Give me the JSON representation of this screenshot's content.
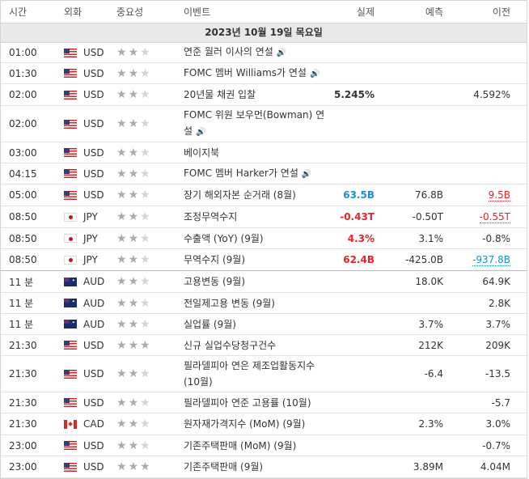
{
  "columns": {
    "time": "시간",
    "currency": "외화",
    "importance": "중요성",
    "event": "이벤트",
    "actual": "실제",
    "forecast": "예측",
    "previous": "이전"
  },
  "date_header": "2023년 10월 19일 목요일",
  "rows": [
    {
      "time": "01:00",
      "cur": "USD",
      "stars": 2,
      "event": "연준 월러 이사의 연설",
      "speech": true,
      "actual": "",
      "forecast": "",
      "previous": "",
      "h": 24
    },
    {
      "time": "01:30",
      "cur": "USD",
      "stars": 2,
      "event": "FOMC 멤버 Williams가 연설",
      "speech": true,
      "actual": "",
      "forecast": "",
      "previous": "",
      "h": 25
    },
    {
      "time": "02:00",
      "cur": "USD",
      "stars": 2,
      "event": "20년물 채권 입찰",
      "speech": false,
      "actual": "5.245%",
      "forecast": "",
      "previous": "4.592%",
      "h": 26
    },
    {
      "time": "02:00",
      "cur": "USD",
      "stars": 2,
      "event": "FOMC 위원 보우먼(Bowman) 연설",
      "speech": true,
      "actual": "",
      "forecast": "",
      "previous": "",
      "h": 44
    },
    {
      "time": "03:00",
      "cur": "USD",
      "stars": 2,
      "event": "베이지북",
      "speech": false,
      "actual": "",
      "forecast": "",
      "previous": "",
      "h": 25
    },
    {
      "time": "04:15",
      "cur": "USD",
      "stars": 2,
      "event": "FOMC 멤버 Harker가 연설",
      "speech": true,
      "actual": "",
      "forecast": "",
      "previous": "",
      "h": 25
    },
    {
      "time": "05:00",
      "cur": "USD",
      "stars": 2,
      "event": "장기 해외자본 순거래 (8월)",
      "speech": false,
      "actual": "63.5B",
      "actual_color": "pos",
      "forecast": "76.8B",
      "previous": "9.5B",
      "previous_style": "ul-red",
      "h": 26
    },
    {
      "time": "08:50",
      "cur": "JPY",
      "stars": 2,
      "event": "조정무역수지",
      "speech": false,
      "actual": "-0.43T",
      "actual_color": "neg",
      "forecast": "-0.50T",
      "previous": "-0.55T",
      "previous_style": "ul-red",
      "h": 26
    },
    {
      "time": "08:50",
      "cur": "JPY",
      "stars": 2,
      "event": "수출액 (YoY) (9월)",
      "speech": false,
      "actual": "4.3%",
      "actual_color": "neg",
      "forecast": "3.1%",
      "previous": "-0.8%",
      "h": 25
    },
    {
      "time": "08:50",
      "cur": "JPY",
      "stars": 2,
      "event": "무역수지 (9월)",
      "speech": false,
      "actual": "62.4B",
      "actual_color": "neg",
      "forecast": "-425.0B",
      "previous": "-937.8B",
      "previous_style": "ul-blue",
      "h": 26,
      "group_end": true
    },
    {
      "time": "11 분",
      "cur": "AUD",
      "stars": 2,
      "event": "고용변동 (9월)",
      "speech": false,
      "actual": "",
      "forecast": "18.0K",
      "previous": "64.9K",
      "h": 26
    },
    {
      "time": "11 분",
      "cur": "AUD",
      "stars": 2,
      "event": "전일제고용 변동 (9월)",
      "speech": false,
      "actual": "",
      "forecast": "",
      "previous": "2.8K",
      "h": 25
    },
    {
      "time": "11 분",
      "cur": "AUD",
      "stars": 2,
      "event": "실업률 (9월)",
      "speech": false,
      "actual": "",
      "forecast": "3.7%",
      "previous": "3.7%",
      "h": 25
    },
    {
      "time": "21:30",
      "cur": "USD",
      "stars": 3,
      "event": "신규 실업수당청구건수",
      "speech": false,
      "actual": "",
      "forecast": "212K",
      "previous": "209K",
      "h": 25
    },
    {
      "time": "21:30",
      "cur": "USD",
      "stars": 2,
      "event": "필라델피아 연은 제조업활동지수 (10월)",
      "speech": false,
      "actual": "",
      "forecast": "-6.4",
      "previous": "-13.5",
      "h": 44
    },
    {
      "time": "21:30",
      "cur": "USD",
      "stars": 2,
      "event": "필라델피아 연준 고용률 (10월)",
      "speech": false,
      "actual": "",
      "forecast": "",
      "previous": "-5.7",
      "h": 25
    },
    {
      "time": "21:30",
      "cur": "CAD",
      "stars": 2,
      "event": "원자재가격지수 (MoM) (9월)",
      "speech": false,
      "actual": "",
      "forecast": "2.3%",
      "previous": "3.0%",
      "h": 26
    },
    {
      "time": "23:00",
      "cur": "USD",
      "stars": 2,
      "event": "기존주택판매 (MoM) (9월)",
      "speech": false,
      "actual": "",
      "forecast": "",
      "previous": "-0.7%",
      "h": 25
    },
    {
      "time": "23:00",
      "cur": "USD",
      "stars": 3,
      "event": "기존주택판매 (9월)",
      "speech": false,
      "actual": "",
      "forecast": "3.89M",
      "previous": "4.04M",
      "h": 26
    }
  ]
}
